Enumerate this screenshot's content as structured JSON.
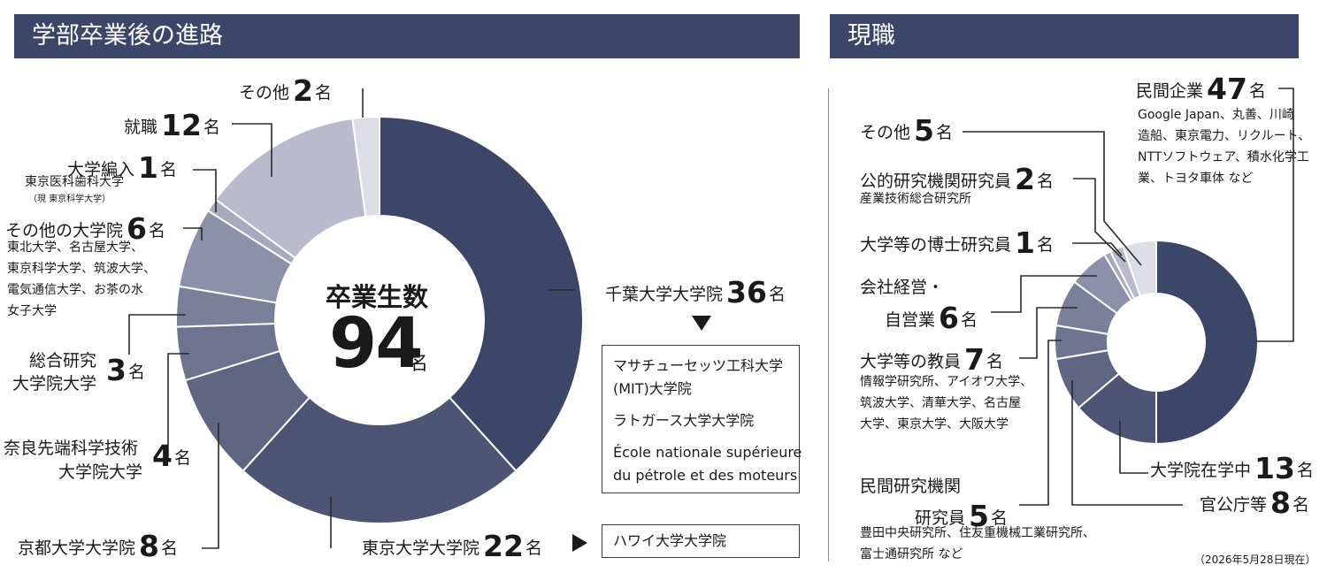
{
  "headers": {
    "left": "学部卒業後の進路",
    "right": "現職"
  },
  "unit": "名",
  "center": {
    "title": "卒業生数",
    "total": "94",
    "unit": "名"
  },
  "chart_data": [
    {
      "type": "pie",
      "title": "学部卒業後の進路",
      "total": 94,
      "slices": [
        {
          "label": "千葉大学大学院",
          "value": 36,
          "color": "#3b4669"
        },
        {
          "label": "東京大学大学院",
          "value": 22,
          "color": "#4d5574"
        },
        {
          "label": "京都大学大学院",
          "value": 8,
          "color": "#5f6682"
        },
        {
          "label": "奈良先端科学技術大学院大学",
          "value": 4,
          "color": "#6e7490"
        },
        {
          "label": "総合研究大学院大学",
          "value": 3,
          "color": "#7b809a"
        },
        {
          "label": "その他の大学院",
          "value": 6,
          "color": "#8c90a8"
        },
        {
          "label": "大学編入",
          "value": 1,
          "color": "#a7a9bd"
        },
        {
          "label": "就職",
          "value": 12,
          "color": "#b9bbcc"
        },
        {
          "label": "その他",
          "value": 2,
          "color": "#dcdde5"
        }
      ]
    },
    {
      "type": "pie",
      "title": "現職",
      "slices": [
        {
          "label": "民間企業",
          "value": 47,
          "color": "#3b4669"
        },
        {
          "label": "大学院在学中",
          "value": 13,
          "color": "#4d5574"
        },
        {
          "label": "官公庁等",
          "value": 8,
          "color": "#5f6682"
        },
        {
          "label": "民間研究機関研究員",
          "value": 5,
          "color": "#6e7490"
        },
        {
          "label": "大学等の教員",
          "value": 7,
          "color": "#7b809a"
        },
        {
          "label": "会社経営・自営業",
          "value": 6,
          "color": "#8c90a8"
        },
        {
          "label": "大学等の博士研究員",
          "value": 1,
          "color": "#a7a9bd"
        },
        {
          "label": "公的研究機関研究員",
          "value": 2,
          "color": "#b9bbcc"
        },
        {
          "label": "その他",
          "value": 5,
          "color": "#dcdde5"
        }
      ]
    }
  ],
  "left_labels": {
    "chiba": {
      "label": "千葉大学大学院",
      "value": "36"
    },
    "tokyo": {
      "label": "東京大学大学院",
      "value": "22"
    },
    "kyoto": {
      "label": "京都大学大学院",
      "value": "8"
    },
    "nara": {
      "line1": "奈良先端科学技術",
      "line2": "大学院大学",
      "value": "4"
    },
    "soken": {
      "line1": "総合研究",
      "line2": "大学院大学",
      "value": "3"
    },
    "other_grad": {
      "label": "その他の大学院",
      "value": "6",
      "detail": [
        "東北大学、名古屋大学、",
        "東京科学大学、筑波大学、",
        "電気通信大学、お茶の水",
        "女子大学"
      ]
    },
    "transfer": {
      "label": "大学編入",
      "value": "1",
      "detail": "東京医科歯科大学",
      "detail_small": "（現 東京科学大学）"
    },
    "job": {
      "label": "就職",
      "value": "12"
    },
    "other": {
      "label": "その他",
      "value": "2"
    }
  },
  "chiba_box": [
    "マサチューセッツ工科大学",
    "(MIT)大学院",
    "ラトガース大学大学院",
    "École nationale supérieure",
    "du pétrole et des moteurs"
  ],
  "tokyo_box": [
    "ハワイ大学大学院"
  ],
  "right_labels": {
    "private": {
      "label": "民間企業",
      "value": "47",
      "detail": [
        "Google Japan、丸善、川崎",
        "造船、東京電力、リクルート、",
        "NTTソフトウェア、積水化学工",
        "業、トヨタ車体 など"
      ]
    },
    "other": {
      "label": "その他",
      "value": "5"
    },
    "public_research": {
      "label": "公的研究機関研究員",
      "value": "2",
      "detail": "産業技術総合研究所"
    },
    "postdoc": {
      "label": "大学等の博士研究員",
      "value": "1"
    },
    "business": {
      "line1": "会社経営・",
      "line2": "自営業",
      "value": "6"
    },
    "faculty": {
      "label": "大学等の教員",
      "value": "7",
      "detail": [
        "情報学研究所、アイオワ大学、",
        "筑波大学、清華大学、名古屋",
        "大学、東京大学、大阪大学"
      ]
    },
    "private_research": {
      "line1": "民間研究機関",
      "line2": "研究員",
      "value": "5",
      "detail": [
        "豊田中央研究所、住友重機械工業研究所、",
        "富士通研究所 など"
      ]
    },
    "grad_school": {
      "label": "大学院在学中",
      "value": "13"
    },
    "government": {
      "label": "官公庁等",
      "value": "8"
    }
  },
  "note": "（2026年5月28日現在）"
}
